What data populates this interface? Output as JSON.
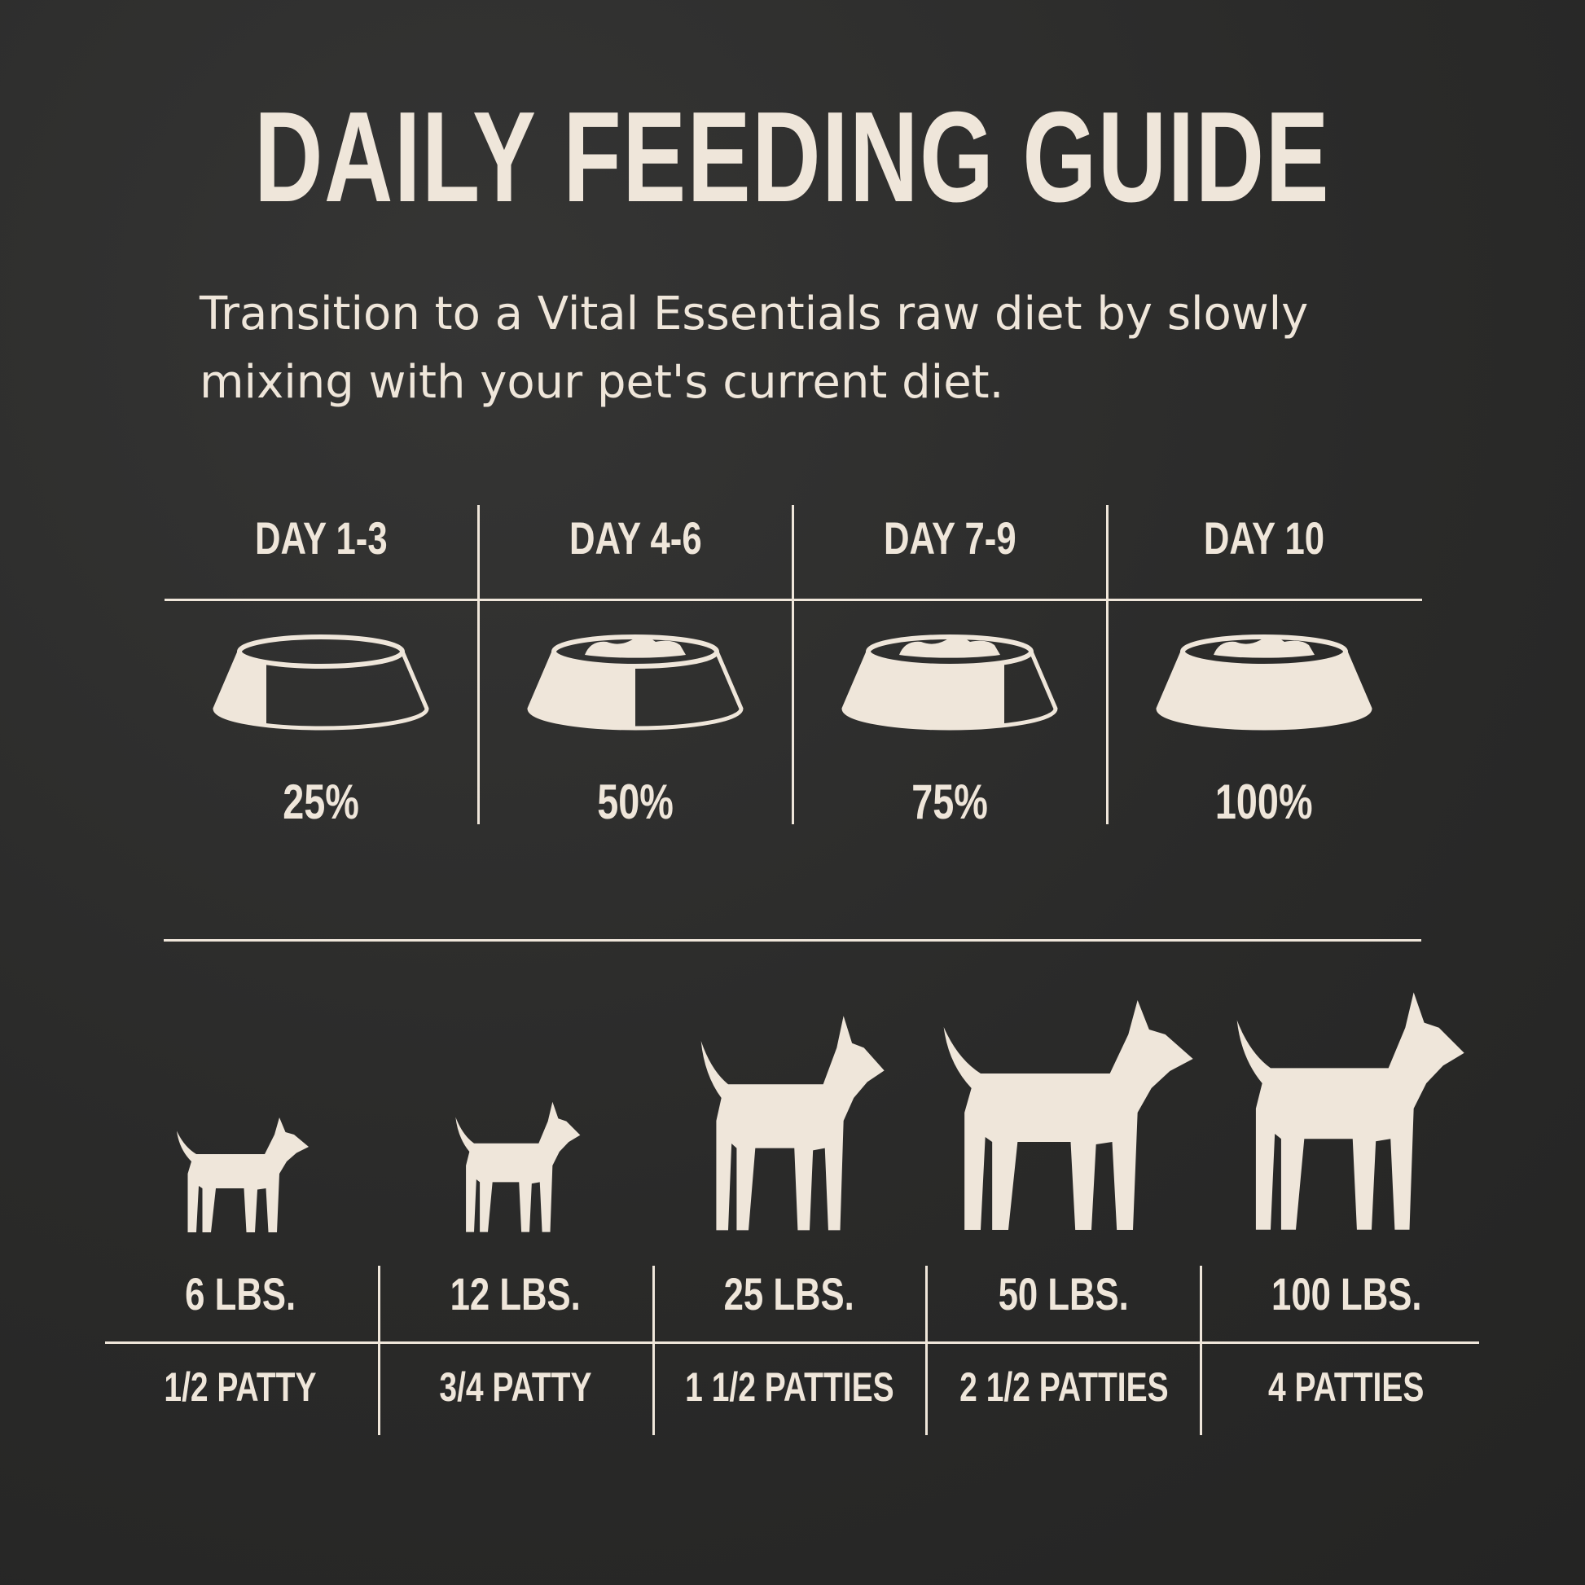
{
  "title": "DAILY FEEDING GUIDE",
  "subtitle": "Transition to a Vital Essentials raw diet by slowly mixing with your pet's current diet.",
  "colors": {
    "background": "#2b2b2a",
    "foreground": "#efe6da"
  },
  "transition": [
    {
      "day": "DAY 1-3",
      "percent_label": "25%",
      "fill_fraction": 0.25,
      "has_food": false,
      "icon": "bowl-icon"
    },
    {
      "day": "DAY 4-6",
      "percent_label": "50%",
      "fill_fraction": 0.5,
      "has_food": true,
      "icon": "bowl-icon"
    },
    {
      "day": "DAY 7-9",
      "percent_label": "75%",
      "fill_fraction": 0.75,
      "has_food": true,
      "icon": "bowl-icon"
    },
    {
      "day": "DAY 10",
      "percent_label": "100%",
      "fill_fraction": 1.0,
      "has_food": true,
      "icon": "bowl-icon"
    }
  ],
  "portions": [
    {
      "weight": "6 LBS.",
      "amount": "1/2 PATTY",
      "icon": "chihuahua-icon"
    },
    {
      "weight": "12 LBS.",
      "amount": "3/4 PATTY",
      "icon": "poodle-icon"
    },
    {
      "weight": "25 LBS.",
      "amount": "1 1/2 PATTIES",
      "icon": "husky-icon"
    },
    {
      "weight": "50 LBS.",
      "amount": "2 1/2 PATTIES",
      "icon": "retriever-icon"
    },
    {
      "weight": "100 LBS.",
      "amount": "4 PATTIES",
      "icon": "great-dane-icon"
    }
  ]
}
